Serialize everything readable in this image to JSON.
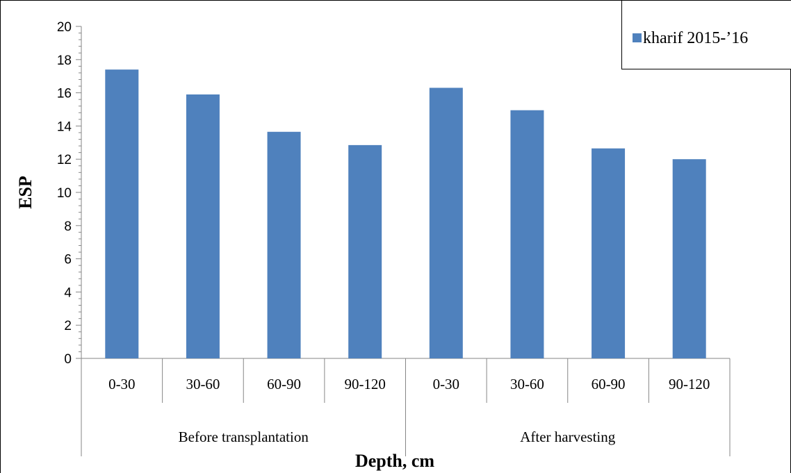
{
  "chart_data": {
    "type": "bar",
    "categories": [
      "0-30",
      "30-60",
      "60-90",
      "90-120",
      "0-30",
      "30-60",
      "60-90",
      "90-120"
    ],
    "groups": [
      {
        "label": "Before transplantation",
        "start": 0,
        "count": 4
      },
      {
        "label": "After harvesting",
        "start": 4,
        "count": 4
      }
    ],
    "series": [
      {
        "name": "kharif 2015-’16",
        "values": [
          17.4,
          15.9,
          13.65,
          12.85,
          16.3,
          14.95,
          12.65,
          12.0
        ]
      }
    ],
    "xlabel": "Depth, cm",
    "ylabel": "ESP",
    "ylim": [
      0,
      20
    ],
    "ytick_step": 2,
    "yticks": [
      "0",
      "2",
      "4",
      "6",
      "8",
      "10",
      "12",
      "14",
      "16",
      "18",
      "20"
    ],
    "grid": false,
    "legend": "top-right",
    "colors": {
      "bar": "#4f81bd",
      "axis": "#868686",
      "border": "#000000"
    }
  }
}
